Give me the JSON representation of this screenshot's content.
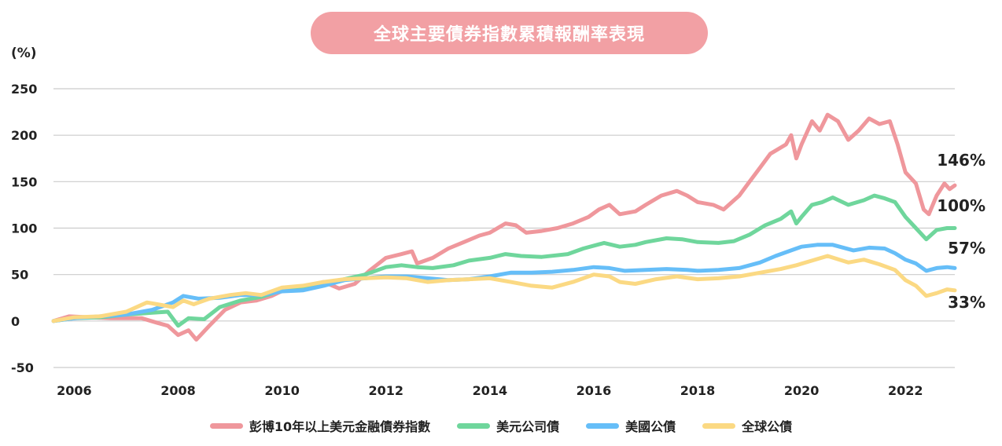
{
  "header": {
    "title": "全球主要債券指數累積報酬率表現"
  },
  "colors": {
    "title_bg": "#F2A0A4",
    "grid": "#CCCCCC"
  },
  "chart_data": {
    "type": "line",
    "title": "全球主要債券指數累積報酬率表現",
    "ylabel": "(%)",
    "xlabel": "",
    "xlim": [
      2005.6,
      2022.95
    ],
    "ylim": [
      -50,
      250
    ],
    "yticks": [
      250,
      200,
      150,
      100,
      50,
      0,
      -50
    ],
    "xticks": [
      2006,
      2008,
      2010,
      2012,
      2014,
      2016,
      2018,
      2020,
      2022
    ],
    "grid": true,
    "legend": "bottom",
    "series": [
      {
        "name": "彭博10年以上美元金融債券指數",
        "color": "#EF979C",
        "end_label": "146%",
        "points": [
          [
            2005.6,
            0
          ],
          [
            2005.9,
            5
          ],
          [
            2006.3,
            4
          ],
          [
            2006.7,
            3
          ],
          [
            2007.0,
            3
          ],
          [
            2007.3,
            3
          ],
          [
            2007.6,
            -2
          ],
          [
            2007.8,
            -5
          ],
          [
            2008.0,
            -15
          ],
          [
            2008.2,
            -10
          ],
          [
            2008.35,
            -20
          ],
          [
            2008.6,
            -5
          ],
          [
            2008.9,
            12
          ],
          [
            2009.2,
            20
          ],
          [
            2009.5,
            22
          ],
          [
            2009.8,
            27
          ],
          [
            2010.1,
            35
          ],
          [
            2010.5,
            38
          ],
          [
            2010.8,
            42
          ],
          [
            2011.1,
            35
          ],
          [
            2011.4,
            40
          ],
          [
            2011.7,
            55
          ],
          [
            2012.0,
            68
          ],
          [
            2012.3,
            72
          ],
          [
            2012.5,
            75
          ],
          [
            2012.6,
            62
          ],
          [
            2012.9,
            68
          ],
          [
            2013.2,
            78
          ],
          [
            2013.5,
            85
          ],
          [
            2013.8,
            92
          ],
          [
            2014.0,
            95
          ],
          [
            2014.3,
            105
          ],
          [
            2014.5,
            103
          ],
          [
            2014.7,
            95
          ],
          [
            2015.0,
            97
          ],
          [
            2015.3,
            100
          ],
          [
            2015.6,
            105
          ],
          [
            2015.9,
            112
          ],
          [
            2016.1,
            120
          ],
          [
            2016.3,
            125
          ],
          [
            2016.5,
            115
          ],
          [
            2016.8,
            118
          ],
          [
            2017.0,
            125
          ],
          [
            2017.3,
            135
          ],
          [
            2017.6,
            140
          ],
          [
            2017.8,
            135
          ],
          [
            2018.0,
            128
          ],
          [
            2018.3,
            125
          ],
          [
            2018.5,
            120
          ],
          [
            2018.8,
            135
          ],
          [
            2019.0,
            150
          ],
          [
            2019.2,
            165
          ],
          [
            2019.4,
            180
          ],
          [
            2019.7,
            190
          ],
          [
            2019.8,
            200
          ],
          [
            2019.9,
            175
          ],
          [
            2020.0,
            190
          ],
          [
            2020.2,
            215
          ],
          [
            2020.35,
            205
          ],
          [
            2020.5,
            222
          ],
          [
            2020.7,
            215
          ],
          [
            2020.9,
            195
          ],
          [
            2021.1,
            205
          ],
          [
            2021.3,
            218
          ],
          [
            2021.5,
            212
          ],
          [
            2021.7,
            215
          ],
          [
            2021.85,
            190
          ],
          [
            2022.0,
            160
          ],
          [
            2022.2,
            148
          ],
          [
            2022.35,
            120
          ],
          [
            2022.45,
            115
          ],
          [
            2022.6,
            135
          ],
          [
            2022.75,
            148
          ],
          [
            2022.85,
            142
          ],
          [
            2022.95,
            146
          ]
        ]
      },
      {
        "name": "美元公司債",
        "color": "#6FD69C",
        "end_label": "100%",
        "points": [
          [
            2005.6,
            0
          ],
          [
            2006.0,
            3
          ],
          [
            2006.5,
            4
          ],
          [
            2007.0,
            7
          ],
          [
            2007.5,
            9
          ],
          [
            2007.8,
            10
          ],
          [
            2008.0,
            -5
          ],
          [
            2008.2,
            3
          ],
          [
            2008.5,
            2
          ],
          [
            2008.8,
            15
          ],
          [
            2009.2,
            22
          ],
          [
            2009.6,
            26
          ],
          [
            2010.0,
            33
          ],
          [
            2010.4,
            36
          ],
          [
            2010.8,
            40
          ],
          [
            2011.2,
            45
          ],
          [
            2011.6,
            50
          ],
          [
            2012.0,
            58
          ],
          [
            2012.3,
            60
          ],
          [
            2012.6,
            58
          ],
          [
            2012.9,
            57
          ],
          [
            2013.3,
            60
          ],
          [
            2013.6,
            65
          ],
          [
            2014.0,
            68
          ],
          [
            2014.3,
            72
          ],
          [
            2014.6,
            70
          ],
          [
            2015.0,
            69
          ],
          [
            2015.5,
            72
          ],
          [
            2015.8,
            78
          ],
          [
            2016.2,
            84
          ],
          [
            2016.5,
            80
          ],
          [
            2016.8,
            82
          ],
          [
            2017.0,
            85
          ],
          [
            2017.4,
            89
          ],
          [
            2017.7,
            88
          ],
          [
            2018.0,
            85
          ],
          [
            2018.4,
            84
          ],
          [
            2018.7,
            86
          ],
          [
            2019.0,
            93
          ],
          [
            2019.3,
            103
          ],
          [
            2019.6,
            110
          ],
          [
            2019.8,
            118
          ],
          [
            2019.9,
            105
          ],
          [
            2020.0,
            112
          ],
          [
            2020.2,
            125
          ],
          [
            2020.4,
            128
          ],
          [
            2020.6,
            133
          ],
          [
            2020.9,
            125
          ],
          [
            2021.2,
            130
          ],
          [
            2021.4,
            135
          ],
          [
            2021.6,
            132
          ],
          [
            2021.8,
            128
          ],
          [
            2022.0,
            112
          ],
          [
            2022.2,
            100
          ],
          [
            2022.4,
            88
          ],
          [
            2022.6,
            98
          ],
          [
            2022.8,
            100
          ],
          [
            2022.95,
            100
          ]
        ]
      },
      {
        "name": "美國公債",
        "color": "#66BEF8",
        "end_label": "57%",
        "points": [
          [
            2005.6,
            0
          ],
          [
            2006.0,
            3
          ],
          [
            2006.5,
            5
          ],
          [
            2007.0,
            7
          ],
          [
            2007.5,
            12
          ],
          [
            2007.9,
            20
          ],
          [
            2008.1,
            27
          ],
          [
            2008.4,
            24
          ],
          [
            2008.8,
            25
          ],
          [
            2009.2,
            28
          ],
          [
            2009.6,
            28
          ],
          [
            2010.0,
            32
          ],
          [
            2010.4,
            33
          ],
          [
            2010.8,
            38
          ],
          [
            2011.2,
            44
          ],
          [
            2011.6,
            46
          ],
          [
            2012.0,
            48
          ],
          [
            2012.4,
            48
          ],
          [
            2012.8,
            46
          ],
          [
            2013.2,
            44
          ],
          [
            2013.6,
            45
          ],
          [
            2014.0,
            48
          ],
          [
            2014.4,
            52
          ],
          [
            2014.8,
            52
          ],
          [
            2015.2,
            53
          ],
          [
            2015.6,
            55
          ],
          [
            2016.0,
            58
          ],
          [
            2016.3,
            57
          ],
          [
            2016.6,
            54
          ],
          [
            2017.0,
            55
          ],
          [
            2017.4,
            56
          ],
          [
            2017.8,
            55
          ],
          [
            2018.0,
            54
          ],
          [
            2018.4,
            55
          ],
          [
            2018.8,
            57
          ],
          [
            2019.2,
            63
          ],
          [
            2019.5,
            70
          ],
          [
            2019.8,
            76
          ],
          [
            2020.0,
            80
          ],
          [
            2020.3,
            82
          ],
          [
            2020.6,
            82
          ],
          [
            2021.0,
            76
          ],
          [
            2021.3,
            79
          ],
          [
            2021.6,
            78
          ],
          [
            2021.8,
            73
          ],
          [
            2022.0,
            66
          ],
          [
            2022.2,
            62
          ],
          [
            2022.4,
            54
          ],
          [
            2022.6,
            57
          ],
          [
            2022.8,
            58
          ],
          [
            2022.95,
            57
          ]
        ]
      },
      {
        "name": "全球公債",
        "color": "#FBD983",
        "end_label": "33%",
        "points": [
          [
            2005.6,
            0
          ],
          [
            2006.0,
            4
          ],
          [
            2006.5,
            5
          ],
          [
            2007.0,
            10
          ],
          [
            2007.4,
            20
          ],
          [
            2007.6,
            18
          ],
          [
            2007.9,
            15
          ],
          [
            2008.1,
            22
          ],
          [
            2008.3,
            18
          ],
          [
            2008.6,
            24
          ],
          [
            2009.0,
            28
          ],
          [
            2009.3,
            30
          ],
          [
            2009.6,
            28
          ],
          [
            2010.0,
            36
          ],
          [
            2010.4,
            38
          ],
          [
            2010.8,
            42
          ],
          [
            2011.2,
            45
          ],
          [
            2011.6,
            46
          ],
          [
            2012.0,
            47
          ],
          [
            2012.4,
            46
          ],
          [
            2012.8,
            42
          ],
          [
            2013.2,
            44
          ],
          [
            2013.6,
            45
          ],
          [
            2014.0,
            46
          ],
          [
            2014.4,
            42
          ],
          [
            2014.8,
            38
          ],
          [
            2015.2,
            36
          ],
          [
            2015.6,
            42
          ],
          [
            2016.0,
            50
          ],
          [
            2016.3,
            48
          ],
          [
            2016.5,
            42
          ],
          [
            2016.8,
            40
          ],
          [
            2017.2,
            45
          ],
          [
            2017.6,
            48
          ],
          [
            2018.0,
            45
          ],
          [
            2018.4,
            46
          ],
          [
            2018.8,
            48
          ],
          [
            2019.2,
            52
          ],
          [
            2019.6,
            56
          ],
          [
            2019.9,
            60
          ],
          [
            2020.2,
            65
          ],
          [
            2020.5,
            70
          ],
          [
            2020.9,
            63
          ],
          [
            2021.2,
            66
          ],
          [
            2021.5,
            61
          ],
          [
            2021.8,
            55
          ],
          [
            2022.0,
            44
          ],
          [
            2022.2,
            38
          ],
          [
            2022.4,
            27
          ],
          [
            2022.6,
            30
          ],
          [
            2022.8,
            34
          ],
          [
            2022.95,
            33
          ]
        ]
      }
    ]
  }
}
